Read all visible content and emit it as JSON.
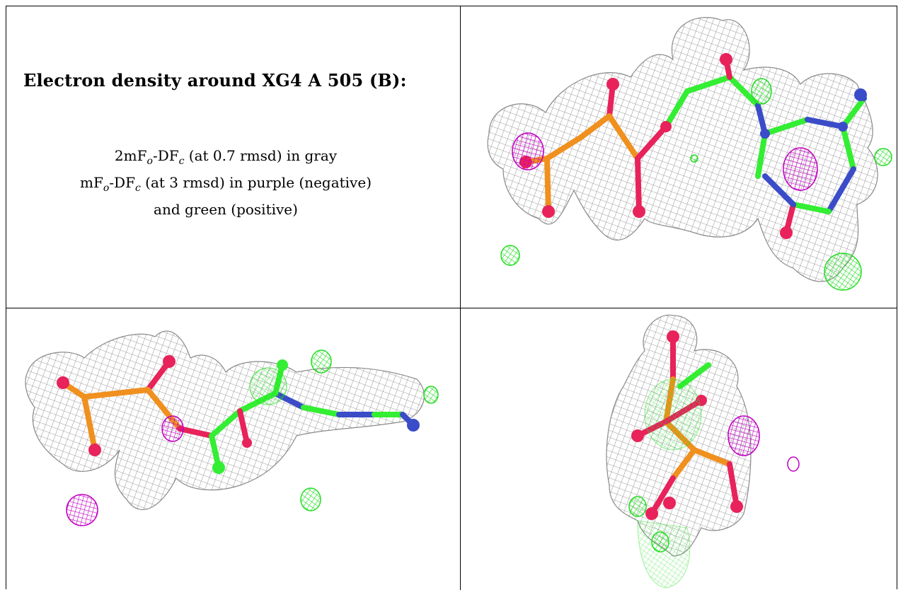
{
  "title": "Electron density around XG4 A 505 (B):",
  "legend": {
    "line1": {
      "pre": "2mF",
      "sub1": "o",
      "mid": "-DF",
      "sub2": "c",
      "post": " (at 0.7 rmsd) in gray"
    },
    "line2": {
      "pre": "mF",
      "sub1": "o",
      "mid": "-DF",
      "sub2": "c",
      "post": " (at 3 rmsd) in purple (negative)"
    },
    "line3": "and green (positive)"
  },
  "colors": {
    "mesh_2fofc": "#9a9a9a",
    "mesh_negative": "#c000c0",
    "mesh_positive": "#22dd22",
    "atom_carbon": "#33ee33",
    "atom_oxygen": "#e8225a",
    "atom_phosphorus": "#f0901e",
    "atom_nitrogen": "#3a4cc8"
  },
  "panels": [
    {
      "name": "view-1",
      "icon": "density-map-view"
    },
    {
      "name": "view-2",
      "icon": "density-map-view"
    },
    {
      "name": "view-3",
      "icon": "density-map-view"
    }
  ]
}
